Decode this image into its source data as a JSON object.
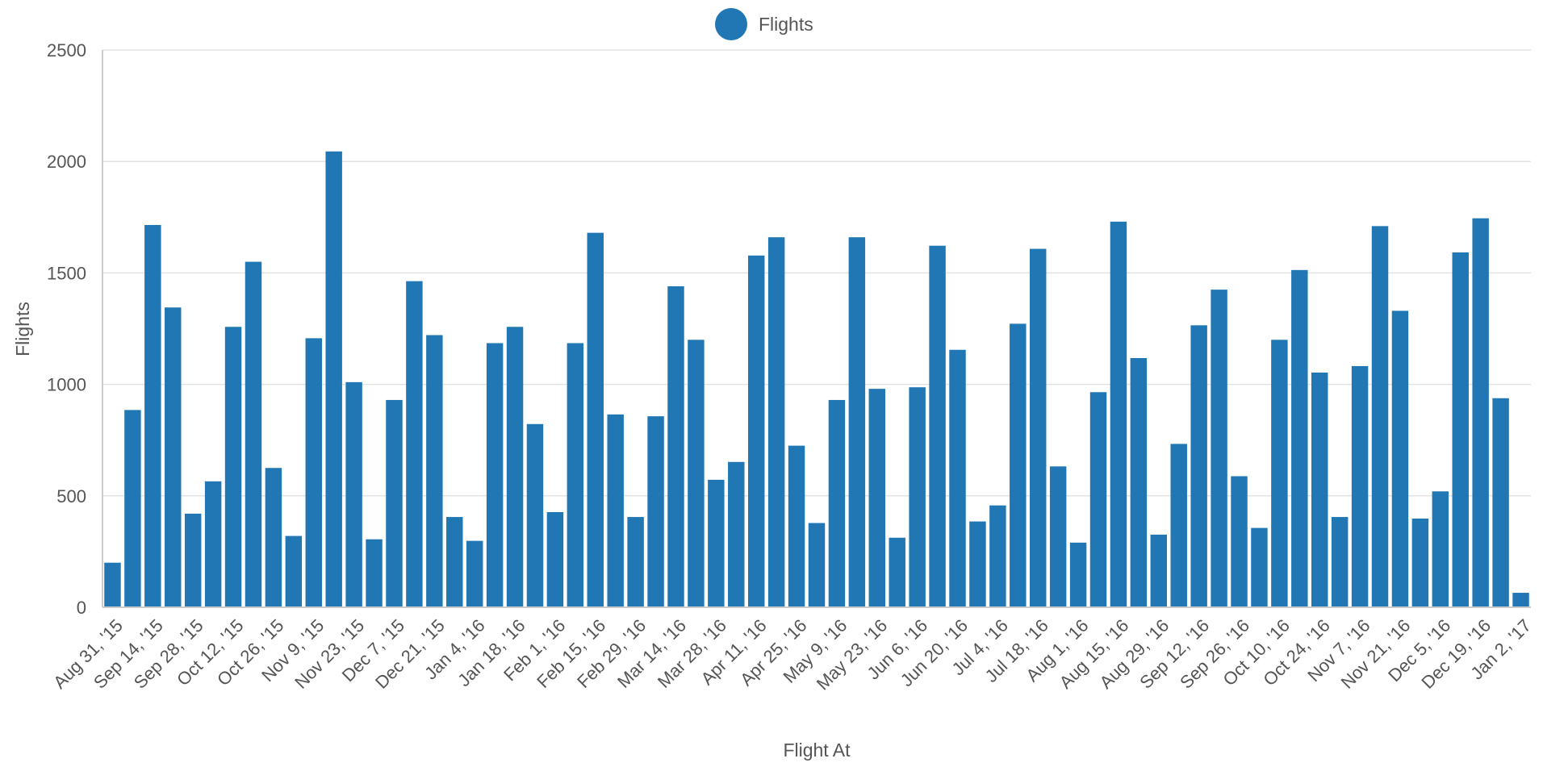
{
  "chart_data": {
    "type": "bar",
    "xlabel": "Flight At",
    "ylabel": "Flights",
    "ylim": [
      0,
      2500
    ],
    "yticks": [
      "0",
      "500",
      "1000",
      "1500",
      "2000",
      "2500"
    ],
    "grid": true,
    "legend_position": "top-center",
    "color": "#2077b4",
    "series": [
      {
        "name": "Flights",
        "values": [
          200,
          885,
          1715,
          1345,
          420,
          565,
          1258,
          1550,
          625,
          320,
          1207,
          2045,
          1010,
          305,
          930,
          1463,
          1221,
          405,
          298,
          1185,
          1258,
          822,
          427,
          1185,
          1680,
          865,
          405,
          857,
          1440,
          1200,
          572,
          652,
          1578,
          1660,
          725,
          378,
          930,
          1660,
          980,
          312,
          987,
          1622,
          1155,
          385,
          457,
          1272,
          1608,
          632,
          290,
          965,
          1730,
          1118,
          326,
          733,
          1265,
          1425,
          588,
          356,
          1200,
          1513,
          1053,
          405,
          1082,
          1710,
          1330,
          398,
          520,
          1592,
          1745,
          938,
          65
        ]
      }
    ],
    "x_tick_labels": [
      "Aug 31, '15",
      "Sep 14, '15",
      "Sep 28, '15",
      "Oct 12, '15",
      "Oct 26, '15",
      "Nov 9, '15",
      "Nov 23, '15",
      "Dec 7, '15",
      "Dec 21, '15",
      "Jan 4, '16",
      "Jan 18, '16",
      "Feb 1, '16",
      "Feb 15, '16",
      "Feb 29, '16",
      "Mar 14, '16",
      "Mar 28, '16",
      "Apr 11, '16",
      "Apr 25, '16",
      "May 9, '16",
      "May 23, '16",
      "Jun 6, '16",
      "Jun 20, '16",
      "Jul 4, '16",
      "Jul 18, '16",
      "Aug 1, '16",
      "Aug 15, '16",
      "Aug 29, '16",
      "Sep 12, '16",
      "Sep 26, '16",
      "Oct 10, '16",
      "Oct 24, '16",
      "Nov 7, '16",
      "Nov 21, '16",
      "Dec 5, '16",
      "Dec 19, '16",
      "Jan 2, '17"
    ]
  }
}
